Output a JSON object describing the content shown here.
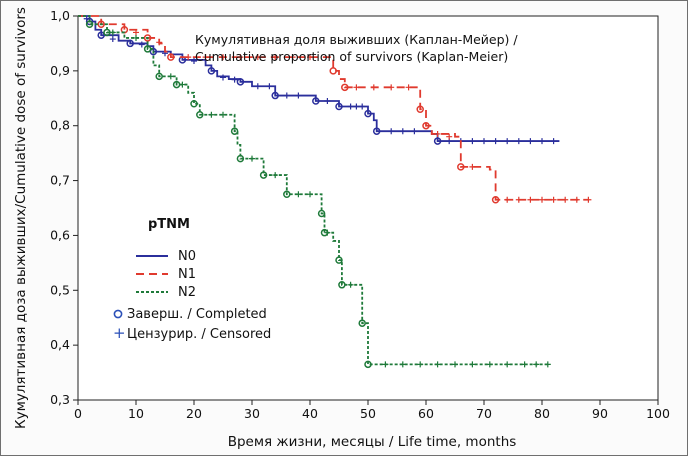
{
  "chart_data": {
    "type": "line",
    "title_ru": "Кумулятивная доля выживших (Каплан-Мейер) /",
    "title_en": "Cumulative proportion of survivors (Kaplan-Meier)",
    "xlabel": "Время жизни, месяцы / Life time, months",
    "ylabel": "Кумулятивная доза выживших/Cumulative dose of survivors",
    "xlim": [
      0,
      100
    ],
    "ylim": [
      0.3,
      1.0
    ],
    "x_ticks": [
      "0",
      "10",
      "20",
      "30",
      "40",
      "50",
      "60",
      "70",
      "80",
      "90",
      "100"
    ],
    "y_ticks": [
      "0,3",
      "0,4",
      "0,5",
      "0,6",
      "0,7",
      "0,8",
      "0,9",
      "1,0"
    ],
    "legend_title": "pTNM",
    "series": [
      {
        "name": "N0",
        "color": "#2b2f9c",
        "dash": "solid",
        "steps": [
          [
            0,
            1.0
          ],
          [
            2,
            0.99
          ],
          [
            3,
            0.975
          ],
          [
            4,
            0.965
          ],
          [
            7,
            0.955
          ],
          [
            9,
            0.95
          ],
          [
            12,
            0.945
          ],
          [
            13,
            0.935
          ],
          [
            16,
            0.93
          ],
          [
            18,
            0.92
          ],
          [
            22,
            0.91
          ],
          [
            23,
            0.9
          ],
          [
            24,
            0.89
          ],
          [
            26,
            0.885
          ],
          [
            28,
            0.88
          ],
          [
            30,
            0.872
          ],
          [
            34,
            0.855
          ],
          [
            41,
            0.845
          ],
          [
            45,
            0.835
          ],
          [
            50,
            0.822
          ],
          [
            51,
            0.81
          ],
          [
            51.5,
            0.79
          ],
          [
            61,
            0.785
          ],
          [
            62,
            0.772
          ],
          [
            83,
            0.772
          ]
        ],
        "events": [
          [
            2,
            0.99
          ],
          [
            4,
            0.965
          ],
          [
            9,
            0.95
          ],
          [
            13,
            0.935
          ],
          [
            18,
            0.92
          ],
          [
            23,
            0.9
          ],
          [
            28,
            0.88
          ],
          [
            34,
            0.855
          ],
          [
            41,
            0.845
          ],
          [
            45,
            0.835
          ],
          [
            50,
            0.822
          ],
          [
            51.5,
            0.79
          ],
          [
            62,
            0.772
          ]
        ],
        "censored": [
          [
            1.5,
            0.995
          ],
          [
            6,
            0.958
          ],
          [
            11,
            0.948
          ],
          [
            15,
            0.932
          ],
          [
            20,
            0.918
          ],
          [
            25,
            0.888
          ],
          [
            27,
            0.884
          ],
          [
            31,
            0.872
          ],
          [
            33,
            0.872
          ],
          [
            36,
            0.855
          ],
          [
            38,
            0.855
          ],
          [
            43,
            0.845
          ],
          [
            47,
            0.835
          ],
          [
            48,
            0.835
          ],
          [
            49,
            0.835
          ],
          [
            54,
            0.79
          ],
          [
            56,
            0.79
          ],
          [
            58,
            0.79
          ],
          [
            64,
            0.772
          ],
          [
            66,
            0.772
          ],
          [
            68,
            0.772
          ],
          [
            70,
            0.772
          ],
          [
            72,
            0.772
          ],
          [
            74,
            0.772
          ],
          [
            76,
            0.772
          ],
          [
            78,
            0.772
          ],
          [
            80,
            0.772
          ],
          [
            82,
            0.772
          ]
        ]
      },
      {
        "name": "N1",
        "color": "#e03a2e",
        "dash": "8 5",
        "steps": [
          [
            0,
            1.0
          ],
          [
            4,
            0.985
          ],
          [
            8,
            0.975
          ],
          [
            12,
            0.96
          ],
          [
            14,
            0.95
          ],
          [
            15,
            0.935
          ],
          [
            16,
            0.925
          ],
          [
            44,
            0.9
          ],
          [
            45,
            0.885
          ],
          [
            46,
            0.87
          ],
          [
            59,
            0.83
          ],
          [
            60,
            0.8
          ],
          [
            61,
            0.785
          ],
          [
            65,
            0.78
          ],
          [
            66,
            0.725
          ],
          [
            71,
            0.72
          ],
          [
            72,
            0.665
          ],
          [
            88,
            0.665
          ]
        ],
        "events": [
          [
            4,
            0.985
          ],
          [
            8,
            0.975
          ],
          [
            12,
            0.96
          ],
          [
            16,
            0.925
          ],
          [
            44,
            0.9
          ],
          [
            46,
            0.87
          ],
          [
            59,
            0.83
          ],
          [
            60,
            0.8
          ],
          [
            66,
            0.725
          ],
          [
            72,
            0.665
          ]
        ],
        "censored": [
          [
            10,
            0.97
          ],
          [
            14,
            0.952
          ],
          [
            19,
            0.925
          ],
          [
            22,
            0.925
          ],
          [
            25,
            0.925
          ],
          [
            28,
            0.925
          ],
          [
            31,
            0.925
          ],
          [
            34,
            0.925
          ],
          [
            37,
            0.925
          ],
          [
            40,
            0.925
          ],
          [
            48,
            0.87
          ],
          [
            51,
            0.87
          ],
          [
            54,
            0.87
          ],
          [
            57,
            0.87
          ],
          [
            62,
            0.785
          ],
          [
            64,
            0.78
          ],
          [
            68,
            0.725
          ],
          [
            74,
            0.665
          ],
          [
            76,
            0.665
          ],
          [
            78,
            0.665
          ],
          [
            80,
            0.665
          ],
          [
            82,
            0.665
          ],
          [
            84,
            0.665
          ],
          [
            86,
            0.665
          ],
          [
            88,
            0.665
          ]
        ]
      },
      {
        "name": "N2",
        "color": "#1f7a3a",
        "dash": "3 2",
        "steps": [
          [
            0,
            1.0
          ],
          [
            2,
            0.985
          ],
          [
            5,
            0.97
          ],
          [
            8,
            0.96
          ],
          [
            12,
            0.94
          ],
          [
            13,
            0.91
          ],
          [
            14,
            0.89
          ],
          [
            17,
            0.875
          ],
          [
            19,
            0.86
          ],
          [
            20,
            0.84
          ],
          [
            21,
            0.82
          ],
          [
            27,
            0.79
          ],
          [
            27.5,
            0.765
          ],
          [
            28,
            0.74
          ],
          [
            32,
            0.71
          ],
          [
            36,
            0.675
          ],
          [
            42,
            0.64
          ],
          [
            42.5,
            0.605
          ],
          [
            44,
            0.59
          ],
          [
            45,
            0.555
          ],
          [
            45.5,
            0.51
          ],
          [
            49,
            0.44
          ],
          [
            50,
            0.365
          ],
          [
            81,
            0.365
          ]
        ],
        "events": [
          [
            2,
            0.985
          ],
          [
            5,
            0.97
          ],
          [
            12,
            0.94
          ],
          [
            14,
            0.89
          ],
          [
            17,
            0.875
          ],
          [
            20,
            0.84
          ],
          [
            21,
            0.82
          ],
          [
            27,
            0.79
          ],
          [
            28,
            0.74
          ],
          [
            32,
            0.71
          ],
          [
            36,
            0.675
          ],
          [
            42,
            0.64
          ],
          [
            42.5,
            0.605
          ],
          [
            45,
            0.555
          ],
          [
            45.5,
            0.51
          ],
          [
            49,
            0.44
          ],
          [
            50,
            0.365
          ]
        ],
        "censored": [
          [
            6,
            0.97
          ],
          [
            10,
            0.96
          ],
          [
            16,
            0.89
          ],
          [
            18,
            0.875
          ],
          [
            23,
            0.82
          ],
          [
            25,
            0.82
          ],
          [
            30,
            0.74
          ],
          [
            34,
            0.71
          ],
          [
            38,
            0.675
          ],
          [
            40,
            0.675
          ],
          [
            43,
            0.605
          ],
          [
            47,
            0.51
          ],
          [
            53,
            0.365
          ],
          [
            56,
            0.365
          ],
          [
            59,
            0.365
          ],
          [
            62,
            0.365
          ],
          [
            65,
            0.365
          ],
          [
            68,
            0.365
          ],
          [
            71,
            0.365
          ],
          [
            74,
            0.365
          ],
          [
            77,
            0.365
          ],
          [
            79,
            0.365
          ],
          [
            81,
            0.365
          ]
        ]
      }
    ],
    "legend_markers": [
      {
        "symbol": "o",
        "label": "Заверш. / Completed"
      },
      {
        "symbol": "+",
        "label": "Цензурир. / Censored"
      }
    ],
    "marker_color": "#2b50b8"
  }
}
